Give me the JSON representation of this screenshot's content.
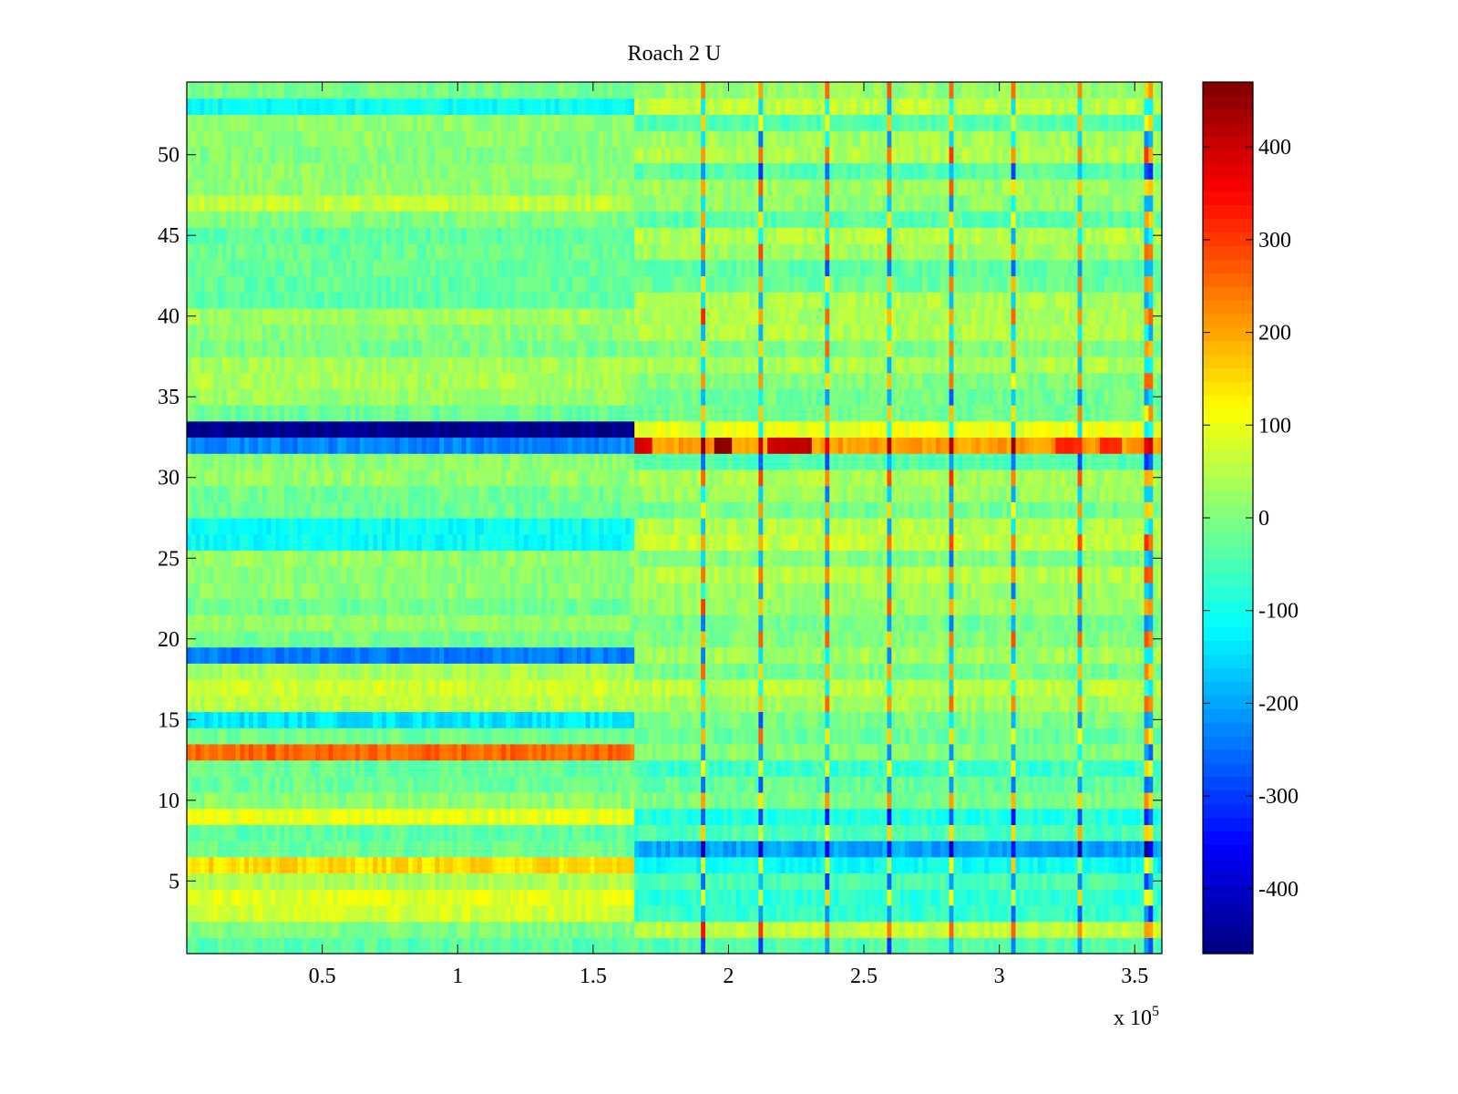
{
  "chart_data": {
    "type": "heatmap",
    "title": "Roach 2 U",
    "xlabel": "",
    "ylabel": "",
    "x_exponent_label": "x 10",
    "x_exponent_power": "5",
    "xlim": [
      0,
      3.6
    ],
    "ylim": [
      0.5,
      54.5
    ],
    "x_ticks": [
      {
        "value": 0.5,
        "label": "0.5"
      },
      {
        "value": 1,
        "label": "1"
      },
      {
        "value": 1.5,
        "label": "1.5"
      },
      {
        "value": 2,
        "label": "2"
      },
      {
        "value": 2.5,
        "label": "2.5"
      },
      {
        "value": 3,
        "label": "3"
      },
      {
        "value": 3.5,
        "label": "3.5"
      }
    ],
    "y_ticks": [
      {
        "value": 5,
        "label": "5"
      },
      {
        "value": 10,
        "label": "10"
      },
      {
        "value": 15,
        "label": "15"
      },
      {
        "value": 20,
        "label": "20"
      },
      {
        "value": 25,
        "label": "25"
      },
      {
        "value": 30,
        "label": "30"
      },
      {
        "value": 35,
        "label": "35"
      },
      {
        "value": 40,
        "label": "40"
      },
      {
        "value": 45,
        "label": "45"
      },
      {
        "value": 50,
        "label": "50"
      }
    ],
    "colorbar": {
      "colormap": "jet",
      "range": [
        -470,
        470
      ],
      "ticks": [
        {
          "value": 400,
          "label": "400"
        },
        {
          "value": 300,
          "label": "300"
        },
        {
          "value": 200,
          "label": "200"
        },
        {
          "value": 100,
          "label": "100"
        },
        {
          "value": 0,
          "label": "0"
        },
        {
          "value": -100,
          "label": "-100"
        },
        {
          "value": -200,
          "label": "-200"
        },
        {
          "value": -300,
          "label": "-300"
        },
        {
          "value": -400,
          "label": "-400"
        }
      ]
    },
    "rows": 54,
    "change_point_x": 1.65,
    "segment_means_before": {
      "53": -110,
      "47": 60,
      "40": 30,
      "33": -460,
      "32": -230,
      "27": -110,
      "26": -110,
      "19": -240,
      "17": 70,
      "16": 55,
      "15": -140,
      "13": 260,
      "9": 95,
      "6": 150,
      "4": 90,
      "3": 75
    },
    "segment_means_after": {
      "53": 60,
      "50": 45,
      "45": 50,
      "40": 40,
      "33": 100,
      "32": 210,
      "27": 50,
      "26": 60,
      "19": 30,
      "17": 60,
      "16": 30,
      "13": 10,
      "12": -70,
      "9": -90,
      "8": -50,
      "7": -200,
      "6": -110,
      "4": -80,
      "3": -70,
      "2": 60,
      "1": -40
    },
    "vertical_artifact_x": [
      1.9,
      2.12,
      2.36,
      2.59,
      2.82,
      3.05,
      3.3,
      3.55
    ],
    "hot_patches": [
      {
        "row": 32,
        "x_start": 1.95,
        "x_end": 2.02,
        "value": 470
      },
      {
        "row": 32,
        "x_start": 2.14,
        "x_end": 2.3,
        "value": 420
      },
      {
        "row": 32,
        "x_start": 1.66,
        "x_end": 1.72,
        "value": 400
      },
      {
        "row": 32,
        "x_start": 3.2,
        "x_end": 3.3,
        "value": 330
      },
      {
        "row": 32,
        "x_start": 3.37,
        "x_end": 3.45,
        "value": 340
      }
    ]
  }
}
